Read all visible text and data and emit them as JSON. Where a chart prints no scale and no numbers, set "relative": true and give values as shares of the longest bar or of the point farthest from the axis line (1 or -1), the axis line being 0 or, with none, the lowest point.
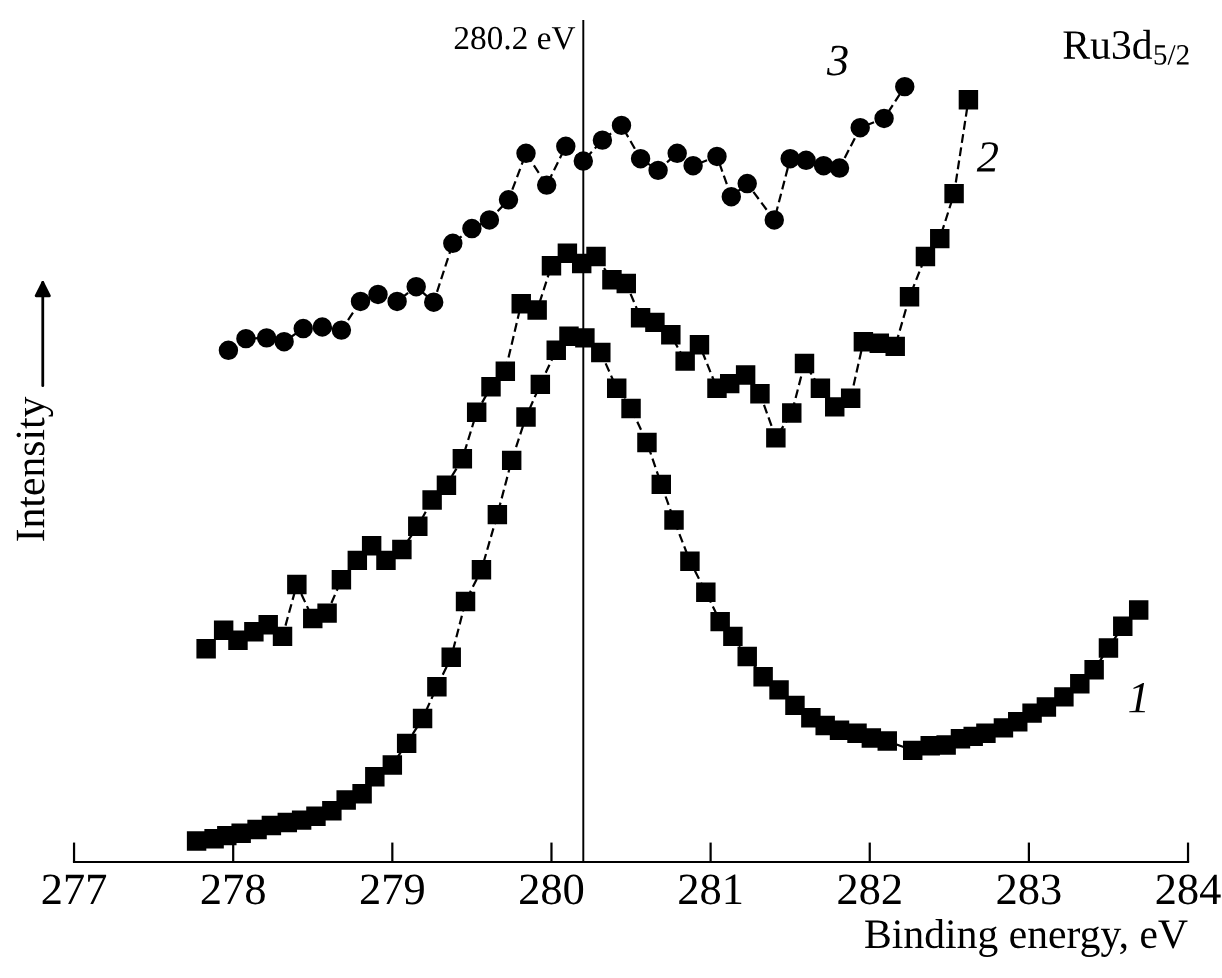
{
  "chart_data": {
    "type": "line",
    "xlabel": "Binding energy, eV",
    "ylabel": "Intensity",
    "relative": true,
    "xlim": [
      277,
      284
    ],
    "xticks": [
      277,
      278,
      279,
      280,
      281,
      282,
      283,
      284
    ],
    "grid": false,
    "line_style": "dashed",
    "ref_lines": [
      {
        "axis": "x",
        "value": 280.2,
        "label": "280.2 eV",
        "color": "#000000",
        "line_style": "solid"
      }
    ],
    "annotations": [
      "Ru3d$_{5/2}$"
    ],
    "series": [
      {
        "name": "1",
        "color": "#000000",
        "marker": "square",
        "x": [
          277.77,
          277.88,
          277.96,
          278.05,
          278.15,
          278.24,
          278.34,
          278.43,
          278.52,
          278.62,
          278.71,
          278.81,
          278.89,
          279.0,
          279.09,
          279.19,
          279.28,
          279.37,
          279.46,
          279.56,
          279.66,
          279.75,
          279.84,
          279.93,
          280.03,
          280.11,
          280.21,
          280.31,
          280.41,
          280.5,
          280.6,
          280.69,
          280.77,
          280.87,
          280.97,
          281.06,
          281.14,
          281.23,
          281.33,
          281.43,
          281.53,
          281.63,
          281.72,
          281.81,
          281.92,
          282.01,
          282.11,
          282.27,
          282.38,
          282.48,
          282.57,
          282.65,
          282.73,
          282.84,
          282.93,
          283.02,
          283.11,
          283.22,
          283.32,
          283.41,
          283.5,
          283.59,
          283.69
        ],
        "values": [
          0.027,
          0.03,
          0.034,
          0.037,
          0.042,
          0.047,
          0.051,
          0.054,
          0.059,
          0.066,
          0.08,
          0.088,
          0.11,
          0.125,
          0.153,
          0.185,
          0.226,
          0.264,
          0.336,
          0.377,
          0.448,
          0.518,
          0.574,
          0.616,
          0.66,
          0.678,
          0.676,
          0.657,
          0.611,
          0.585,
          0.541,
          0.487,
          0.441,
          0.388,
          0.348,
          0.31,
          0.291,
          0.265,
          0.239,
          0.222,
          0.202,
          0.186,
          0.176,
          0.17,
          0.166,
          0.16,
          0.156,
          0.144,
          0.15,
          0.151,
          0.159,
          0.162,
          0.166,
          0.173,
          0.181,
          0.192,
          0.2,
          0.213,
          0.23,
          0.248,
          0.276,
          0.304,
          0.325
        ]
      },
      {
        "name": "2",
        "color": "#000000",
        "marker": "square",
        "x": [
          277.83,
          277.94,
          278.03,
          278.13,
          278.22,
          278.31,
          278.4,
          278.5,
          278.59,
          278.68,
          278.78,
          278.87,
          278.96,
          279.06,
          279.16,
          279.25,
          279.34,
          279.44,
          279.53,
          279.62,
          279.71,
          279.81,
          279.91,
          280.0,
          280.1,
          280.19,
          280.28,
          280.38,
          280.47,
          280.56,
          280.65,
          280.75,
          280.84,
          280.93,
          281.04,
          281.12,
          281.22,
          281.31,
          281.41,
          281.51,
          281.59,
          281.69,
          281.78,
          281.88,
          281.96,
          282.06,
          282.16,
          282.25,
          282.35,
          282.44,
          282.53,
          282.62
        ],
        "values": [
          0.275,
          0.299,
          0.286,
          0.297,
          0.306,
          0.291,
          0.358,
          0.314,
          0.321,
          0.364,
          0.389,
          0.408,
          0.389,
          0.403,
          0.433,
          0.467,
          0.486,
          0.52,
          0.58,
          0.613,
          0.633,
          0.72,
          0.712,
          0.769,
          0.785,
          0.772,
          0.781,
          0.751,
          0.746,
          0.702,
          0.696,
          0.68,
          0.646,
          0.667,
          0.611,
          0.617,
          0.628,
          0.604,
          0.547,
          0.579,
          0.643,
          0.611,
          0.587,
          0.598,
          0.671,
          0.669,
          0.665,
          0.729,
          0.781,
          0.804,
          0.862,
          0.983
        ]
      },
      {
        "name": "3",
        "color": "#000000",
        "marker": "circle",
        "x": [
          277.97,
          278.08,
          278.21,
          278.32,
          278.44,
          278.56,
          278.68,
          278.8,
          278.91,
          279.03,
          279.15,
          279.26,
          279.38,
          279.5,
          279.61,
          279.73,
          279.84,
          279.97,
          280.09,
          280.2,
          280.32,
          280.44,
          280.56,
          280.67,
          280.79,
          280.89,
          281.04,
          281.13,
          281.23,
          281.4,
          281.5,
          281.6,
          281.71,
          281.81,
          281.94,
          282.09,
          282.22
        ],
        "values": [
          0.66,
          0.675,
          0.676,
          0.671,
          0.688,
          0.69,
          0.686,
          0.723,
          0.732,
          0.723,
          0.742,
          0.722,
          0.798,
          0.817,
          0.828,
          0.854,
          0.914,
          0.873,
          0.923,
          0.904,
          0.931,
          0.95,
          0.907,
          0.892,
          0.914,
          0.898,
          0.91,
          0.858,
          0.875,
          0.828,
          0.907,
          0.905,
          0.898,
          0.895,
          0.947,
          0.959,
          1.0
        ]
      }
    ]
  }
}
